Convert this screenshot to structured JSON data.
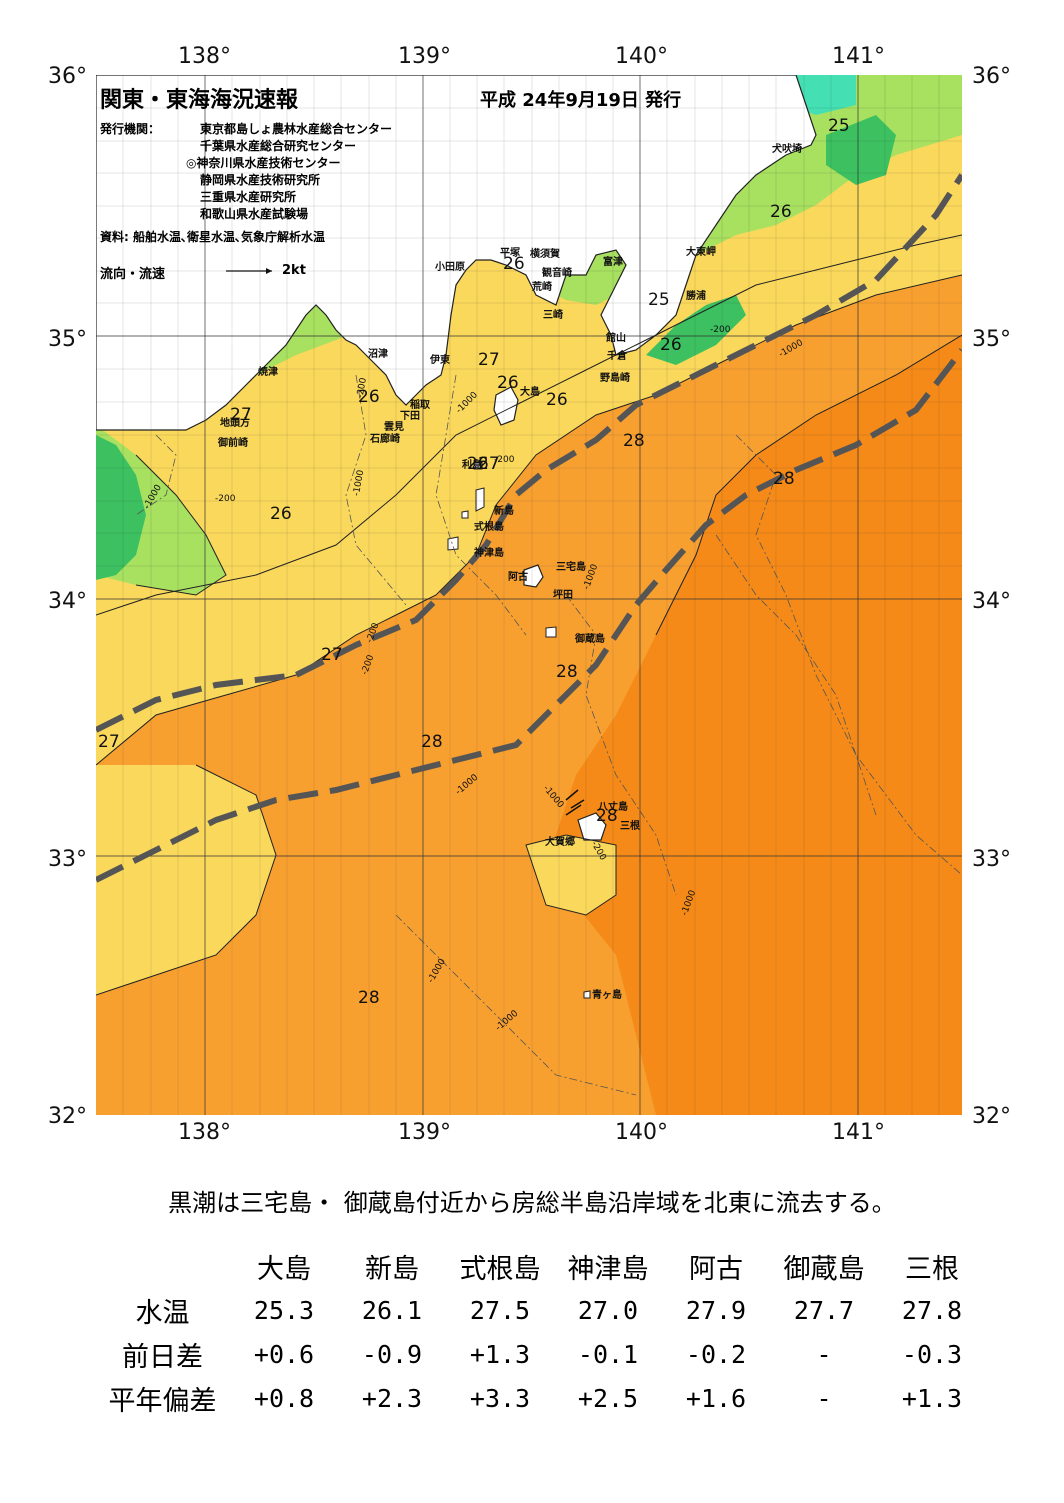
{
  "axis": {
    "lon_top": [
      "138°",
      "139°",
      "140°",
      "141°"
    ],
    "lon_bottom": [
      "138°",
      "139°",
      "140°",
      "141°"
    ],
    "lat_left": [
      "36°",
      "35°",
      "34°",
      "33°",
      "32°"
    ],
    "lat_right": [
      "36°",
      "35°",
      "34°",
      "33°",
      "32°"
    ]
  },
  "header": {
    "title": "関東・東海海況速報",
    "date": "平成 24年9月19日 発行",
    "issuer_label": "発行機関：",
    "issuers": [
      "東京都島しょ農林水産総合センター",
      "千葉県水産総合研究センター",
      "◎神奈川県水産技術センター",
      "静岡県水産技術研究所",
      "三重県水産研究所",
      "和歌山県水産試験場"
    ],
    "source": "資料: 船舶水温､衛星水温､気象庁解析水温",
    "flow_label": "流向・流速",
    "flow_scale": "2kt"
  },
  "places": [
    "犬吠埼",
    "大東岬",
    "勝浦",
    "富津",
    "横須賀",
    "観音崎",
    "平塚",
    "荒崎",
    "小田原",
    "三崎",
    "館山",
    "千倉",
    "野島崎",
    "沼津",
    "伊東",
    "焼津",
    "稲取",
    "下田",
    "雲見",
    "石廊崎",
    "地頭方",
    "御前崎",
    "大島",
    "利島",
    "新島",
    "式根島",
    "神津島",
    "三宅島",
    "阿古",
    "坪田",
    "御蔵島",
    "八丈島",
    "三根",
    "大賀郷",
    "青ヶ島"
  ],
  "temperature_labels": [
    "25",
    "26",
    "26",
    "26",
    "25",
    "26",
    "27",
    "26",
    "26",
    "27",
    "26",
    "28",
    "28",
    "26",
    "27",
    "27",
    "28",
    "28",
    "27",
    "28",
    "28"
  ],
  "depth_labels": [
    "-1000",
    "-200",
    "-1000",
    "-200",
    "-1000",
    "-200",
    "-1000",
    "-200",
    "-1000",
    "-200",
    "-1000",
    "-200",
    "-1000",
    "-1000",
    "-1000",
    "-1000",
    "-200"
  ],
  "colors": {
    "c24": "#44e0b4",
    "c25": "#3cc060",
    "c26": "#a8e060",
    "c27": "#fad85c",
    "c275": "#fbc045",
    "c28": "#f7a030",
    "c285": "#f58a18",
    "land": "#ffffff",
    "kuroshio": "#555555"
  },
  "summary": "黒潮は三宅島・ 御蔵島付近から房総半島沿岸域を北東に流去する。",
  "table": {
    "columns": [
      "大島",
      "新島",
      "式根島",
      "神津島",
      "阿古",
      "御蔵島",
      "三根"
    ],
    "rows": [
      {
        "label": "水温",
        "values": [
          "25.3",
          "26.1",
          "27.5",
          "27.0",
          "27.9",
          "27.7",
          "27.8"
        ]
      },
      {
        "label": "前日差",
        "values": [
          "+0.6",
          "-0.9",
          "+1.3",
          "-0.1",
          "-0.2",
          "-",
          "-0.3"
        ]
      },
      {
        "label": "平年偏差",
        "values": [
          "+0.8",
          "+2.3",
          "+3.3",
          "+2.5",
          "+1.6",
          "-",
          "+1.3"
        ]
      }
    ]
  }
}
